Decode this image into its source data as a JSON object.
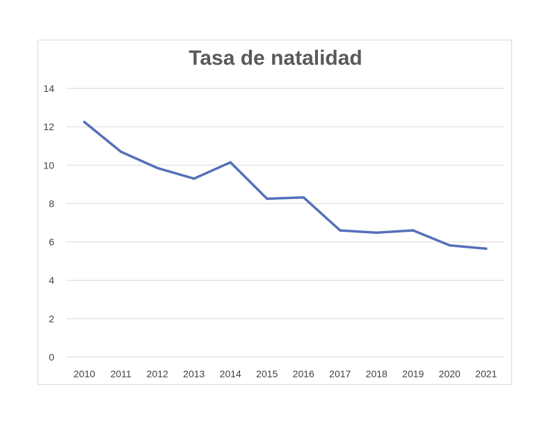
{
  "chart_data": {
    "type": "line",
    "title": "Tasa de natalidad",
    "xlabel": "",
    "ylabel": "",
    "categories": [
      "2010",
      "2011",
      "2012",
      "2013",
      "2014",
      "2015",
      "2016",
      "2017",
      "2018",
      "2019",
      "2020",
      "2021"
    ],
    "series": [
      {
        "values": [
          12.25,
          10.7,
          9.85,
          9.3,
          10.15,
          8.25,
          8.32,
          6.6,
          6.48,
          6.6,
          5.82,
          5.65
        ],
        "color": "#5470b8"
      }
    ],
    "ylim": [
      0,
      14
    ],
    "yticks": [
      0,
      2,
      4,
      6,
      8,
      10,
      12,
      14
    ],
    "grid": true,
    "legend": "none",
    "colors": {
      "gridline": "#d9d9d9",
      "axis_text": "#404040",
      "title": "#595959",
      "frame": "#d9d9d9"
    }
  }
}
